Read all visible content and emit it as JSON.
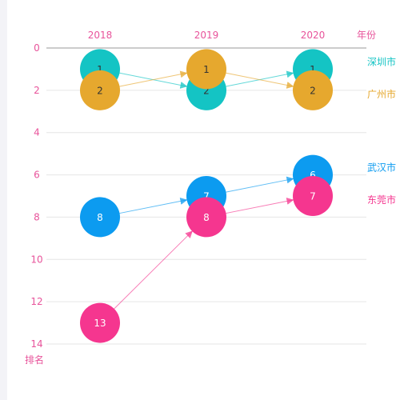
{
  "chart_data": {
    "type": "scatter",
    "x_axis": {
      "name": "年份",
      "categories": [
        "2018",
        "2019",
        "2020"
      ]
    },
    "y_axis": {
      "name": "排名",
      "inverse": true,
      "min": 0,
      "max": 14,
      "ticks": [
        0,
        2,
        4,
        6,
        8,
        10,
        12,
        14
      ]
    },
    "series": [
      {
        "name": "深圳市",
        "color": "#14c4c4",
        "values": [
          1,
          2,
          1
        ]
      },
      {
        "name": "广州市",
        "color": "#e6a82e",
        "values": [
          2,
          1,
          2
        ]
      },
      {
        "name": "武汉市",
        "color": "#0c9bf0",
        "values": [
          8,
          7,
          6
        ]
      },
      {
        "name": "东莞市",
        "color": "#f5368f",
        "values": [
          13,
          8,
          7
        ]
      }
    ],
    "label_colors": {
      "axis": "#e8549b",
      "dark_text": "#333333",
      "light_text": "#ffffff"
    },
    "grid": true
  }
}
